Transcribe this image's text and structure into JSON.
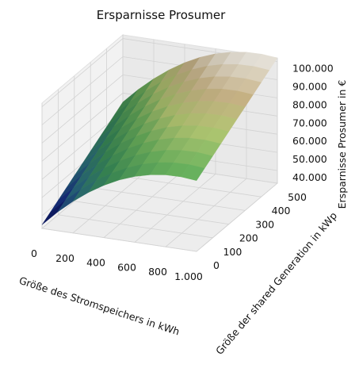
{
  "chart_data": {
    "type": "surface3d",
    "title": "Ersparnisse Prosumer",
    "xlabel": "Größe des Stromspeichers in kWh",
    "ylabel": "Größe der shared Generation in kWp",
    "zlabel": "Ersparnisse Prosumer in €",
    "x_ticks": [
      0,
      200,
      400,
      600,
      800,
      1000
    ],
    "x_tick_labels": [
      "0",
      "200",
      "400",
      "600",
      "800",
      "1.000"
    ],
    "y_ticks": [
      0,
      100,
      200,
      300,
      400,
      500
    ],
    "y_tick_labels": [
      "0",
      "100",
      "200",
      "300",
      "400",
      "500"
    ],
    "z_ticks": [
      40000,
      50000,
      60000,
      70000,
      80000,
      90000,
      100000
    ],
    "z_tick_labels": [
      "40.000",
      "50.000",
      "60.000",
      "70.000",
      "80.000",
      "90.000",
      "100.000"
    ],
    "xlim": [
      0,
      1000
    ],
    "ylim": [
      0,
      500
    ],
    "zlim": [
      33000,
      102000
    ],
    "x": [
      0,
      100,
      200,
      300,
      400,
      500,
      600,
      700,
      800,
      900,
      1000
    ],
    "y": [
      0,
      50,
      100,
      150,
      200,
      250,
      300,
      350,
      400,
      450,
      500
    ],
    "z": [
      [
        35000,
        43200,
        50400,
        56600,
        61800,
        66000,
        69200,
        71400,
        72600,
        72800,
        72000
      ],
      [
        38000,
        46200,
        53400,
        59600,
        64800,
        69000,
        72200,
        74400,
        75600,
        75800,
        75000
      ],
      [
        41000,
        49200,
        56400,
        62600,
        67800,
        72000,
        75200,
        77400,
        78600,
        78800,
        78000
      ],
      [
        44000,
        52200,
        59400,
        65600,
        70800,
        75000,
        78200,
        80400,
        81600,
        81800,
        81000
      ],
      [
        47000,
        55200,
        62400,
        68600,
        73800,
        78000,
        81200,
        83400,
        84600,
        84800,
        84000
      ],
      [
        50000,
        58200,
        65400,
        71600,
        76800,
        81000,
        84200,
        86400,
        87600,
        87800,
        87000
      ],
      [
        53000,
        61200,
        68400,
        74600,
        79800,
        84000,
        87200,
        89400,
        90600,
        90800,
        90000
      ],
      [
        56000,
        64200,
        71400,
        77600,
        82800,
        87000,
        90200,
        92400,
        93600,
        93800,
        93000
      ],
      [
        59000,
        67200,
        74400,
        80600,
        85800,
        90000,
        93200,
        95400,
        96600,
        96800,
        96000
      ],
      [
        62000,
        70200,
        77400,
        83600,
        88800,
        93000,
        96200,
        98400,
        99600,
        99800,
        99000
      ],
      [
        65000,
        73200,
        80400,
        86600,
        91800,
        96000,
        99200,
        101400,
        102600,
        102800,
        102000
      ]
    ],
    "colormap": "gist_earth",
    "grid": true
  }
}
